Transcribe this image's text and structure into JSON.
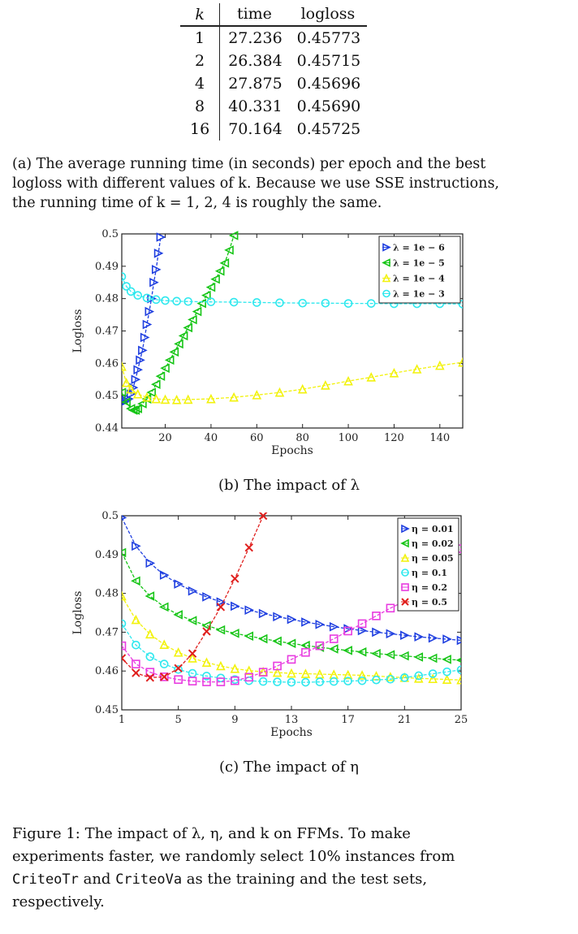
{
  "table": {
    "headers": [
      "k",
      "time",
      "logloss"
    ],
    "rows": [
      [
        "1",
        "27.236",
        "0.45773"
      ],
      [
        "2",
        "26.384",
        "0.45715"
      ],
      [
        "4",
        "27.875",
        "0.45696"
      ],
      [
        "8",
        "40.331",
        "0.45690"
      ],
      [
        "16",
        "70.164",
        "0.45725"
      ]
    ]
  },
  "caption_a": {
    "line1": "(a) The average running time (in seconds) per epoch and the best",
    "line2": "logloss with different values of k. Because we use SSE instructions,",
    "line3": "the running time of k = 1, 2, 4 is roughly the same."
  },
  "caption_b": "(b) The impact of λ",
  "caption_c": "(c) The impact of η",
  "figure_caption": {
    "line1": "Figure 1: The impact of λ, η, and k on FFMs. To make",
    "line2": "experiments faster, we randomly select 10% instances from",
    "line3_a": "CriteoTr",
    "line3_b": " and ",
    "line3_c": "CriteoVa",
    "line3_d": " as the training and the test sets,",
    "line4": "respectively."
  },
  "chart_data": [
    {
      "type": "line",
      "xlabel": "Epochs",
      "ylabel": "Logloss",
      "xlim": [
        1,
        150
      ],
      "ylim": [
        0.44,
        0.5
      ],
      "xticks": [
        "20",
        "40",
        "60",
        "80",
        "100",
        "120",
        "140"
      ],
      "yticks": [
        "0.44",
        "0.45",
        "0.46",
        "0.47",
        "0.48",
        "0.49",
        "0.5"
      ],
      "legend_position": "top-right",
      "series": [
        {
          "name": "λ = 1e − 6",
          "color": "#1f3fe0",
          "marker": "triangle-right",
          "x": [
            1,
            2,
            3,
            4,
            5,
            6,
            7,
            8,
            9,
            10,
            11,
            12,
            13,
            14,
            15,
            16,
            17,
            18
          ],
          "y": [
            0.449,
            0.448,
            0.4485,
            0.449,
            0.4505,
            0.4525,
            0.455,
            0.458,
            0.461,
            0.464,
            0.468,
            0.472,
            0.476,
            0.48,
            0.485,
            0.489,
            0.494,
            0.499
          ]
        },
        {
          "name": "λ = 1e − 5",
          "color": "#16c516",
          "marker": "triangle-left",
          "x": [
            1,
            3,
            5,
            6,
            7,
            8,
            10,
            12,
            14,
            16,
            18,
            20,
            22,
            24,
            26,
            28,
            30,
            32,
            34,
            36,
            38,
            40,
            42,
            44,
            46,
            48,
            50
          ],
          "y": [
            0.451,
            0.448,
            0.446,
            0.4455,
            0.4455,
            0.446,
            0.4475,
            0.449,
            0.451,
            0.4535,
            0.456,
            0.4585,
            0.461,
            0.4635,
            0.466,
            0.4685,
            0.471,
            0.4735,
            0.476,
            0.4785,
            0.481,
            0.4835,
            0.486,
            0.4885,
            0.491,
            0.495,
            0.4995
          ]
        },
        {
          "name": "λ = 1e − 4",
          "color": "#f2f20c",
          "marker": "triangle-up",
          "x": [
            1,
            3,
            5,
            8,
            12,
            16,
            20,
            25,
            30,
            40,
            50,
            60,
            70,
            80,
            90,
            100,
            110,
            120,
            130,
            140,
            150
          ],
          "y": [
            0.459,
            0.454,
            0.452,
            0.4505,
            0.4495,
            0.449,
            0.4488,
            0.4487,
            0.4488,
            0.449,
            0.4495,
            0.4502,
            0.451,
            0.452,
            0.4532,
            0.4545,
            0.4557,
            0.457,
            0.4582,
            0.4593,
            0.4603
          ]
        },
        {
          "name": "λ = 1e − 3",
          "color": "#2ee8ee",
          "marker": "circle",
          "x": [
            1,
            3,
            5,
            8,
            12,
            16,
            20,
            25,
            30,
            40,
            50,
            60,
            70,
            80,
            90,
            100,
            110,
            120,
            130,
            140,
            150
          ],
          "y": [
            0.4868,
            0.4838,
            0.4822,
            0.481,
            0.4802,
            0.4797,
            0.4794,
            0.4792,
            0.4791,
            0.479,
            0.4789,
            0.4788,
            0.4787,
            0.4786,
            0.4786,
            0.4785,
            0.4785,
            0.4784,
            0.4784,
            0.4784,
            0.4783
          ]
        }
      ]
    },
    {
      "type": "line",
      "xlabel": "Epochs",
      "ylabel": "Logloss",
      "xlim": [
        1,
        25
      ],
      "ylim": [
        0.45,
        0.5
      ],
      "xticks": [
        "1",
        "5",
        "9",
        "13",
        "17",
        "21",
        "25"
      ],
      "yticks": [
        "0.45",
        "0.46",
        "0.47",
        "0.48",
        "0.49",
        "0.5"
      ],
      "legend_position": "top-right",
      "series": [
        {
          "name": "η = 0.01",
          "color": "#1f3fe0",
          "marker": "triangle-right",
          "x": [
            1,
            2,
            3,
            4,
            5,
            6,
            7,
            8,
            9,
            10,
            11,
            12,
            13,
            14,
            15,
            16,
            17,
            18,
            19,
            20,
            21,
            22,
            23,
            24,
            25
          ],
          "y": [
            0.4995,
            0.4922,
            0.4878,
            0.4847,
            0.4824,
            0.4806,
            0.4791,
            0.4778,
            0.4767,
            0.4757,
            0.4748,
            0.474,
            0.4733,
            0.4726,
            0.472,
            0.4714,
            0.4709,
            0.4704,
            0.47,
            0.4696,
            0.4692,
            0.4688,
            0.4685,
            0.4682,
            0.4679
          ]
        },
        {
          "name": "η = 0.02",
          "color": "#16c516",
          "marker": "triangle-left",
          "x": [
            1,
            2,
            3,
            4,
            5,
            6,
            7,
            8,
            9,
            10,
            11,
            12,
            13,
            14,
            15,
            16,
            17,
            18,
            19,
            20,
            21,
            22,
            23,
            24,
            25
          ],
          "y": [
            0.4905,
            0.4832,
            0.4793,
            0.4765,
            0.4745,
            0.473,
            0.4717,
            0.4706,
            0.4697,
            0.469,
            0.4683,
            0.4677,
            0.4671,
            0.4666,
            0.4661,
            0.4657,
            0.4653,
            0.4649,
            0.4645,
            0.4642,
            0.4639,
            0.4636,
            0.4633,
            0.463,
            0.4628
          ]
        },
        {
          "name": "η = 0.05",
          "color": "#f2f20c",
          "marker": "triangle-up",
          "x": [
            1,
            2,
            3,
            4,
            5,
            6,
            7,
            8,
            9,
            10,
            11,
            12,
            13,
            14,
            15,
            16,
            17,
            18,
            19,
            20,
            21,
            22,
            23,
            24,
            25
          ],
          "y": [
            0.4793,
            0.4732,
            0.4695,
            0.4668,
            0.4648,
            0.4633,
            0.4622,
            0.4613,
            0.4606,
            0.4601,
            0.4598,
            0.4596,
            0.4594,
            0.4593,
            0.4592,
            0.4591,
            0.459,
            0.4589,
            0.4587,
            0.4585,
            0.4583,
            0.4581,
            0.458,
            0.4578,
            0.4577
          ]
        },
        {
          "name": "η = 0.1",
          "color": "#2ee8ee",
          "marker": "circle",
          "x": [
            1,
            2,
            3,
            4,
            5,
            6,
            7,
            8,
            9,
            10,
            11,
            12,
            13,
            14,
            15,
            16,
            17,
            18,
            19,
            20,
            21,
            22,
            23,
            24,
            25
          ],
          "y": [
            0.4722,
            0.4667,
            0.4637,
            0.4618,
            0.4604,
            0.4594,
            0.4587,
            0.4582,
            0.4578,
            0.4575,
            0.4573,
            0.4572,
            0.4571,
            0.4571,
            0.4572,
            0.4573,
            0.4574,
            0.4575,
            0.4577,
            0.4579,
            0.4583,
            0.4588,
            0.4593,
            0.4598,
            0.4603
          ]
        },
        {
          "name": "η = 0.2",
          "color": "#e83ce0",
          "marker": "square",
          "x": [
            1,
            2,
            3,
            4,
            5,
            6,
            7,
            8,
            9,
            10,
            11,
            12,
            13,
            14,
            15,
            16,
            17,
            18,
            19,
            20,
            21,
            22,
            23,
            24,
            25
          ],
          "y": [
            0.4665,
            0.4618,
            0.4597,
            0.4585,
            0.4578,
            0.4574,
            0.4572,
            0.4572,
            0.4575,
            0.4584,
            0.4597,
            0.4613,
            0.463,
            0.4648,
            0.4665,
            0.4683,
            0.4703,
            0.4722,
            0.4742,
            0.4762,
            0.478,
            0.4805,
            0.4835,
            0.4865,
            0.4915
          ]
        },
        {
          "name": "η = 0.5",
          "color": "#e0201e",
          "marker": "x",
          "x": [
            1,
            2,
            3,
            4,
            5,
            6,
            7,
            8,
            9,
            10,
            11
          ],
          "y": [
            0.4633,
            0.4595,
            0.4583,
            0.4585,
            0.4607,
            0.4645,
            0.4702,
            0.4765,
            0.4838,
            0.4918,
            0.5
          ]
        }
      ]
    }
  ]
}
